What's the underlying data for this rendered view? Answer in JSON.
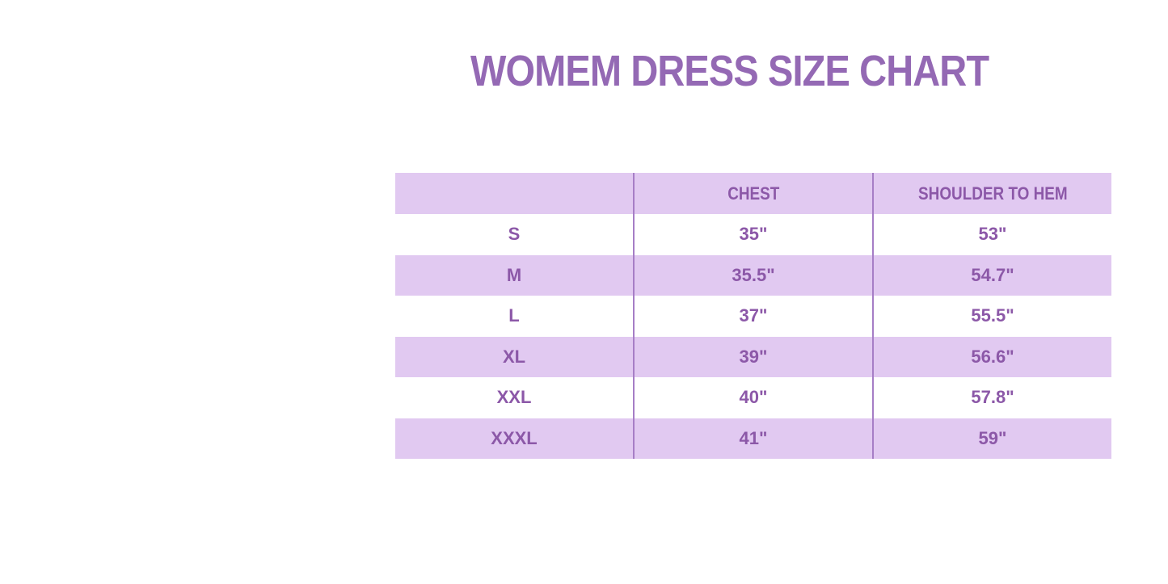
{
  "title": "WOMEM DRESS SIZE CHART",
  "chart_data": {
    "type": "table",
    "title": "WOMEM DRESS SIZE CHART",
    "columns": [
      "",
      "CHEST",
      "SHOULDER TO HEM"
    ],
    "rows": [
      [
        "S",
        "35\"",
        "53\""
      ],
      [
        "M",
        "35.5\"",
        "54.7\""
      ],
      [
        "L",
        "37\"",
        "55.5\""
      ],
      [
        "XL",
        "39\"",
        "56.6\""
      ],
      [
        "XXL",
        "40\"",
        "57.8\""
      ],
      [
        "XXXL",
        "41\"",
        "59\""
      ]
    ],
    "layout": {
      "header_background": "lavender",
      "row_striping": "white / lavender alternating, starting white",
      "grid": "vertical column dividers only, no outer border"
    }
  },
  "colors": {
    "background": "#FFFFFF",
    "title_text": "#9469B4",
    "table_text": "#8C58A8",
    "row_highlight": "#E1C9F1",
    "row_alternate": "#FFFFFF",
    "column_divider": "#A67EC6"
  }
}
